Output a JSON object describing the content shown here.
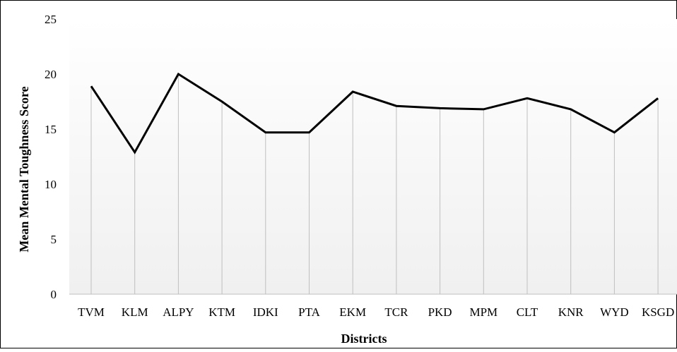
{
  "chart_data": {
    "type": "line",
    "xlabel": "Districts",
    "ylabel": "Mean Mental Toughness Score",
    "ylim": [
      0,
      25
    ],
    "yticks": [
      "0",
      "5",
      "10",
      "15",
      "20",
      "25"
    ],
    "categories": [
      "TVM",
      "KLM",
      "ALPY",
      "KTM",
      "IDKI",
      "PTA",
      "EKM",
      "TCR",
      "PKD",
      "MPM",
      "CLT",
      "KNR",
      "WYD",
      "KSGD"
    ],
    "series": [
      {
        "values": [
          18.9,
          12.9,
          20.0,
          17.5,
          14.7,
          14.7,
          18.4,
          17.1,
          16.9,
          16.8,
          17.8,
          16.8,
          14.7,
          17.8
        ]
      }
    ],
    "grid": "vertical",
    "legend": "none",
    "colors": {
      "line": "#000000",
      "grid": "#bfbfbf",
      "border": "#000000",
      "background_gradient_end": "#f0f0f0"
    }
  }
}
